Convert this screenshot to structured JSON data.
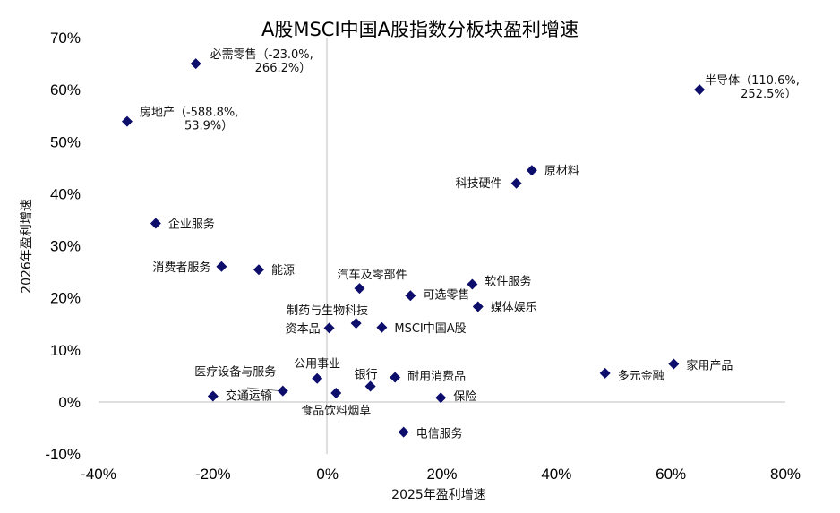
{
  "chart_data": {
    "type": "scatter",
    "title": "A股MSCI中国A股指数分板块盈利增速",
    "xlabel": "2025年盈利增速",
    "ylabel": "2026年盈利增速",
    "xlim": [
      -40,
      80
    ],
    "ylim": [
      -10,
      70
    ],
    "x_ticks": [
      "-40%",
      "-20%",
      "0%",
      "20%",
      "40%",
      "60%",
      "80%"
    ],
    "y_ticks": [
      "-10%",
      "0%",
      "10%",
      "20%",
      "30%",
      "40%",
      "50%",
      "60%",
      "70%"
    ],
    "marker_color": "#0d0d6b",
    "grid": false,
    "points": [
      {
        "name": "必需零售",
        "note": "（-23.0%,",
        "note2": "266.2%）",
        "x": -23.0,
        "y": 65.0
      },
      {
        "name": "房地产",
        "note": "（-588.8%,",
        "note2": "53.9%）",
        "x": -35.0,
        "y": 53.9
      },
      {
        "name": "半导体",
        "note": "（110.6%,",
        "note2": "252.5%）",
        "x": 65.0,
        "y": 60.0
      },
      {
        "name": "原材料",
        "x": 35.7,
        "y": 44.5
      },
      {
        "name": "科技硬件",
        "x": 33.0,
        "y": 42.0
      },
      {
        "name": "企业服务",
        "x": -30.0,
        "y": 34.3
      },
      {
        "name": "消费者服务",
        "x": -18.5,
        "y": 26.0
      },
      {
        "name": "能源",
        "x": -12.0,
        "y": 25.4
      },
      {
        "name": "汽车及零部件",
        "x": 5.6,
        "y": 21.8
      },
      {
        "name": "软件服务",
        "x": 25.3,
        "y": 22.6
      },
      {
        "name": "可选零售",
        "x": 14.5,
        "y": 20.4
      },
      {
        "name": "媒体娱乐",
        "x": 26.3,
        "y": 18.3
      },
      {
        "name": "制药与生物科技",
        "x": 5.0,
        "y": 15.1
      },
      {
        "name": "资本品",
        "x": 0.3,
        "y": 14.2
      },
      {
        "name": "MSCI中国A股",
        "x": 9.5,
        "y": 14.3
      },
      {
        "name": "家用产品",
        "x": 60.5,
        "y": 7.3
      },
      {
        "name": "多元金融",
        "x": 48.5,
        "y": 5.5
      },
      {
        "name": "公用事业",
        "x": -1.8,
        "y": 4.5
      },
      {
        "name": "银行",
        "x": 7.5,
        "y": 3.0
      },
      {
        "name": "耐用消费品",
        "x": 11.8,
        "y": 4.7
      },
      {
        "name": "医疗设备与服务",
        "x": -7.8,
        "y": 2.1
      },
      {
        "name": "交通运输",
        "x": -20.0,
        "y": 1.1
      },
      {
        "name": "食品饮料烟草",
        "x": 1.5,
        "y": 1.7
      },
      {
        "name": "保险",
        "x": 19.8,
        "y": 0.8
      },
      {
        "name": "电信服务",
        "x": 13.3,
        "y": -5.8
      }
    ]
  }
}
